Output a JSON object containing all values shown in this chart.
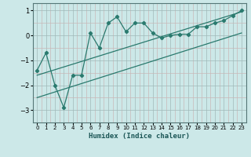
{
  "xlabel": "Humidex (Indice chaleur)",
  "bg_color": "#cce8e8",
  "line_color": "#2a7a6e",
  "grid_color_major": "#b0c8c8",
  "grid_color_minor": "#c8e0e0",
  "x_jagged": [
    0,
    1,
    2,
    3,
    4,
    5,
    6,
    7,
    8,
    9,
    10,
    11,
    12,
    13,
    14,
    15,
    16,
    17,
    18,
    19,
    20,
    21,
    22,
    23
  ],
  "y_jagged": [
    -1.4,
    -0.7,
    -2.0,
    -2.9,
    -1.6,
    -1.6,
    0.1,
    -0.5,
    0.5,
    0.75,
    0.15,
    0.5,
    0.5,
    0.1,
    -0.1,
    0.0,
    0.05,
    0.05,
    0.35,
    0.35,
    0.5,
    0.6,
    0.8,
    1.0
  ],
  "line1_x": [
    0,
    23
  ],
  "line1_y": [
    -1.6,
    0.95
  ],
  "line2_x": [
    0,
    23
  ],
  "line2_y": [
    -2.5,
    0.1
  ],
  "ylim": [
    -3.5,
    1.3
  ],
  "xlim": [
    -0.5,
    23.5
  ],
  "yticks": [
    -3,
    -2,
    -1,
    0,
    1
  ],
  "xticks": [
    0,
    1,
    2,
    3,
    4,
    5,
    6,
    7,
    8,
    9,
    10,
    11,
    12,
    13,
    14,
    15,
    16,
    17,
    18,
    19,
    20,
    21,
    22,
    23
  ]
}
